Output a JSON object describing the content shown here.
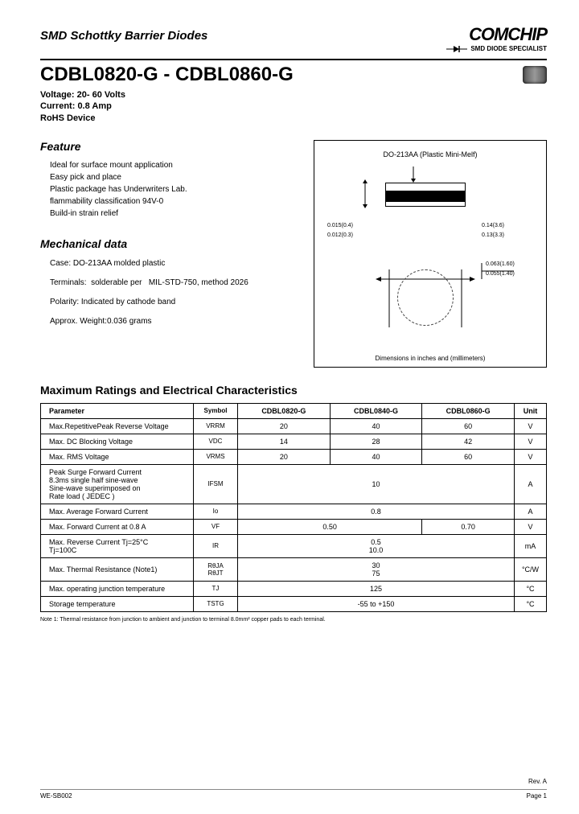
{
  "brand": {
    "name": "COMCHIP",
    "tagline": "SMD DIODE SPECIALIST"
  },
  "subtitle": "SMD Schottky Barrier Diodes",
  "part_range": "CDBL0820-G - CDBL0860-G",
  "headline_specs": {
    "voltage": "Voltage: 20- 60 Volts",
    "current": "Current: 0.8 Amp",
    "rohs": "RoHS Device"
  },
  "feature": {
    "heading": "Feature",
    "lines": [
      "Ideal for surface mount application",
      "Easy pick and place",
      "Plastic package has Underwriters Lab.",
      "flammability classification 94V-0",
      "Build-in strain relief"
    ]
  },
  "mech": {
    "heading": "Mechanical data",
    "case": "Case: DO-213AA molded plastic",
    "terminals": "Terminals:  solderable per   MIL-STD-750, method 2026",
    "polarity": "Polarity: Indicated by cathode band",
    "weight": "Approx. Weight:0.036 grams"
  },
  "package": {
    "title": "DO-213AA (Plastic Mini-Melf)",
    "dims": {
      "d1": "0.015(0.4)",
      "d2": "0.012(0.3)",
      "d3": "0.14(3.6)",
      "d4": "0.13(3.3)",
      "d5": "0.063(1.60)",
      "d6": "0.055(1.40)"
    },
    "footer": "Dimensions in inches and (millimeters)"
  },
  "ratings": {
    "heading": "Maximum Ratings and Electrical Characteristics",
    "columns": [
      "Parameter",
      "Symbol",
      "CDBL0820-G",
      "CDBL0840-G",
      "CDBL0860-G",
      "Unit"
    ],
    "rows": [
      {
        "p": "Max.RepetitivePeak Reverse Voltage",
        "s": "VRRM",
        "v": [
          "20",
          "40",
          "60"
        ],
        "u": "V",
        "span": 1
      },
      {
        "p": "Max. DC Blocking Voltage",
        "s": "VDC",
        "v": [
          "14",
          "28",
          "42"
        ],
        "u": "V",
        "span": 1
      },
      {
        "p": "Max. RMS Voltage",
        "s": "VRMS",
        "v": [
          "20",
          "40",
          "60"
        ],
        "u": "V",
        "span": 1
      },
      {
        "p": "Peak Surge Forward Current\n         8.3ms single half sine-wave\n         Sine-wave superimposed on\n         Rate load ( JEDEC )",
        "s": "IFSM",
        "v": [
          "10"
        ],
        "u": "A",
        "span": 3
      },
      {
        "p": "Max. Average Forward Current",
        "s": "Io",
        "v": [
          "0.8"
        ],
        "u": "A",
        "span": 3
      },
      {
        "p": "Max. Forward Current at 0.8 A",
        "s": "VF",
        "v": [
          "0.50",
          "0.70"
        ],
        "u": "V",
        "span": 2
      },
      {
        "p": "Max. Reverse Current    Tj=25°C\n                                  Tj=100C",
        "s": "IR",
        "v": [
          "0.5\n10.0"
        ],
        "u": "mA",
        "span": 3
      },
      {
        "p": "Max. Thermal Resistance (Note1)",
        "s": "RθJA\nRθJT",
        "v": [
          "30\n75"
        ],
        "u": "°C/W",
        "span": 3
      },
      {
        "p": "Max. operating junction temperature",
        "s": "TJ",
        "v": [
          "125"
        ],
        "u": "°C",
        "span": 3
      },
      {
        "p": "Storage temperature",
        "s": "TSTG",
        "v": [
          "-55 to +150"
        ],
        "u": "°C",
        "span": 3
      }
    ],
    "note": "Note 1: Thermal resistance from junction to ambient and junction to terminal 8.0mm² copper pads to each terminal."
  },
  "footer": {
    "rev": "Rev. A",
    "code": "WE-SB002",
    "page": "Page 1"
  },
  "colors": {
    "text": "#000000",
    "bg": "#ffffff",
    "border": "#000000"
  }
}
